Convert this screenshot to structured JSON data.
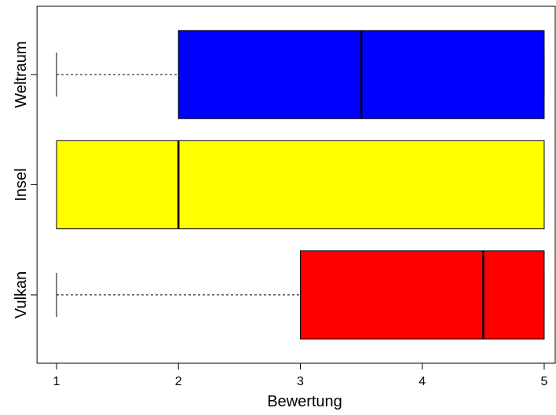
{
  "chart_data": {
    "type": "boxplot",
    "orientation": "horizontal",
    "x_label": "Bewertung",
    "categories": [
      "Vulkan",
      "Insel",
      "Weltraum"
    ],
    "boxes": [
      {
        "name": "Vulkan",
        "color": "#ff0000",
        "min": 1,
        "q1": 3,
        "median": 4.5,
        "q3": 5,
        "max": 5
      },
      {
        "name": "Insel",
        "color": "#ffff00",
        "min": 1,
        "q1": 1,
        "median": 2,
        "q3": 5,
        "max": 5
      },
      {
        "name": "Weltraum",
        "color": "#0000ff",
        "min": 1,
        "q1": 2,
        "median": 3.5,
        "q3": 5,
        "max": 5
      }
    ],
    "xlim": [
      0.84,
      5.16
    ],
    "xticks": [
      1,
      2,
      3,
      4,
      5
    ]
  }
}
